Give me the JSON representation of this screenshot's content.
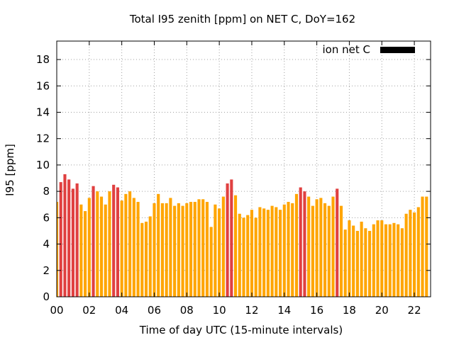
{
  "chart_data": {
    "type": "bar",
    "title": "Total I95 zenith [ppm] on NET C, DoY=162",
    "xlabel": "Time of day UTC (15-minute intervals)",
    "ylabel": "I95 [ppm]",
    "xlim": [
      0,
      23
    ],
    "ylim": [
      0,
      19.4
    ],
    "xticks": [
      "00",
      "02",
      "04",
      "06",
      "08",
      "10",
      "12",
      "14",
      "16",
      "18",
      "20",
      "22"
    ],
    "yticks": [
      "0",
      "2",
      "4",
      "6",
      "8",
      "10",
      "12",
      "14",
      "16",
      "18"
    ],
    "grid": true,
    "legend": {
      "label": "ion net C",
      "color": "#000000",
      "placement": "top-right"
    },
    "colors": {
      "normal": "#ffa500",
      "high": "#e04040"
    },
    "bin_minutes": 15,
    "values": [
      7.2,
      8.7,
      9.3,
      8.9,
      8.2,
      8.6,
      7.0,
      6.5,
      7.5,
      8.4,
      8.0,
      7.6,
      7.0,
      8.0,
      8.5,
      8.3,
      7.3,
      7.8,
      8.0,
      7.5,
      7.2,
      5.6,
      5.7,
      6.1,
      7.1,
      7.8,
      7.1,
      7.1,
      7.5,
      6.9,
      7.1,
      6.9,
      7.1,
      7.2,
      7.2,
      7.4,
      7.4,
      7.2,
      5.3,
      7.0,
      6.7,
      7.6,
      8.6,
      8.9,
      7.7,
      6.3,
      6.0,
      6.2,
      6.6,
      6.0,
      6.8,
      6.7,
      6.6,
      6.9,
      6.8,
      6.6,
      7.0,
      7.2,
      7.1,
      7.8,
      8.3,
      8.0,
      7.6,
      6.9,
      7.4,
      7.5,
      7.1,
      6.9,
      7.6,
      8.2,
      6.9,
      5.1,
      5.8,
      5.4,
      5.0,
      5.7,
      5.2,
      5.0,
      5.5,
      5.8,
      5.8,
      5.5,
      5.5,
      5.6,
      5.5,
      5.2,
      6.3,
      6.6,
      6.4,
      6.8,
      7.6,
      7.6
    ],
    "high_bins": [
      1,
      2,
      3,
      4,
      5,
      9,
      14,
      15,
      42,
      43,
      60,
      61,
      69
    ]
  }
}
